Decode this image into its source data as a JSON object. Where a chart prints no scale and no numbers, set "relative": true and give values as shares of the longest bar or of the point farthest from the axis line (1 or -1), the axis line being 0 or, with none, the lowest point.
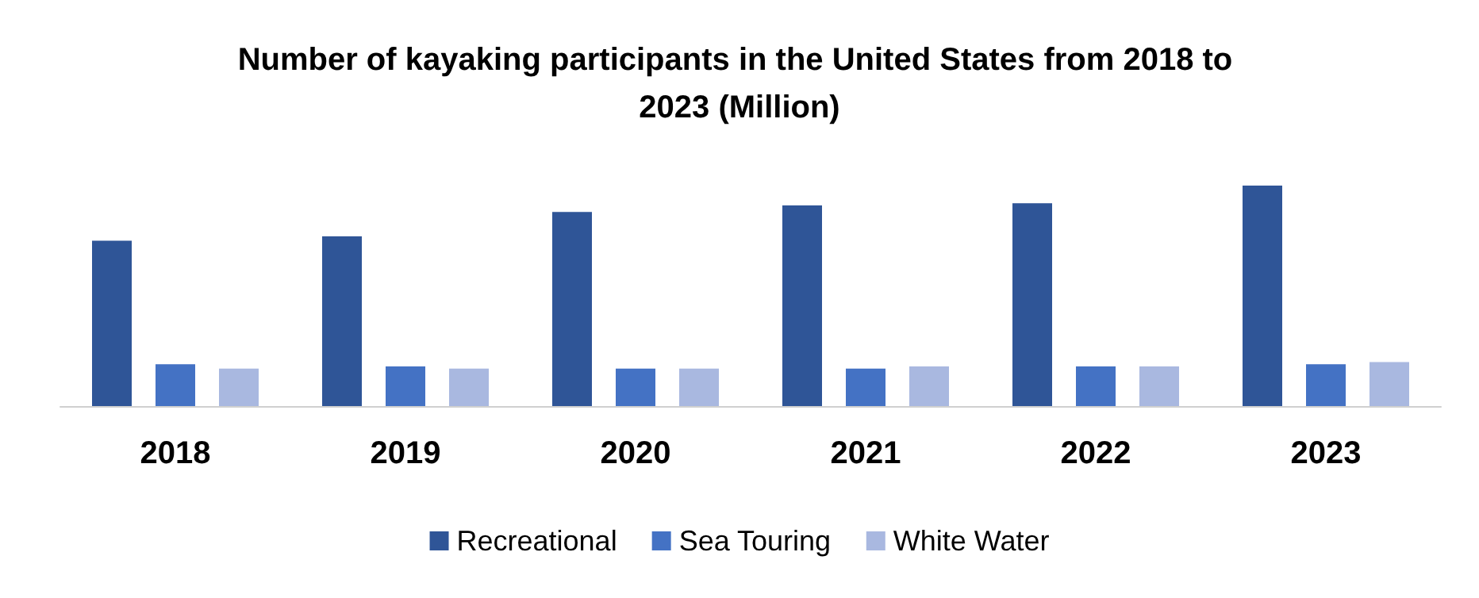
{
  "chart_data": {
    "type": "bar",
    "title": "Number of kayaking participants in the United States from 2018 to 2023 (Million)",
    "relative": true,
    "categories": [
      "2018",
      "2019",
      "2020",
      "2021",
      "2022",
      "2023"
    ],
    "series": [
      {
        "name": "Recreational",
        "color": "#2f5597",
        "values": [
          0.75,
          0.77,
          0.88,
          0.91,
          0.92,
          1
        ]
      },
      {
        "name": "Sea Touring",
        "color": "#4472c4",
        "values": [
          0.19,
          0.18,
          0.17,
          0.17,
          0.18,
          0.19
        ]
      },
      {
        "name": "White Water",
        "color": "#a9b8e0",
        "values": [
          0.17,
          0.17,
          0.17,
          0.18,
          0.18,
          0.2
        ]
      }
    ],
    "legend": "bottom"
  }
}
